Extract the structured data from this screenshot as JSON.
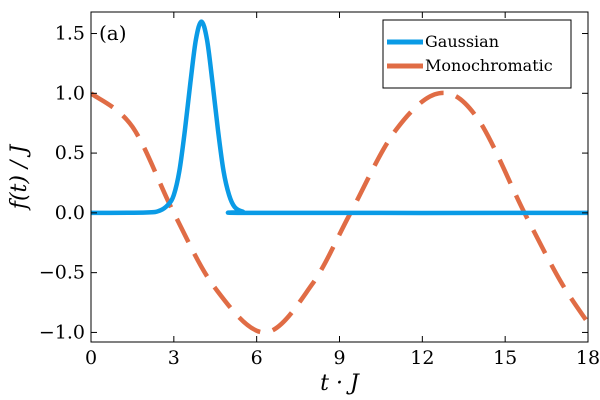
{
  "chart_data": {
    "type": "line",
    "panel_label": "(a)",
    "xlabel": "t · J",
    "ylabel": "f(t) / J",
    "xlim": [
      0,
      18
    ],
    "ylim": [
      -1.08,
      1.68
    ],
    "x_ticks": [
      0,
      3,
      6,
      9,
      12,
      15,
      18
    ],
    "x_tick_labels": [
      "0",
      "3",
      "6",
      "9",
      "12",
      "15",
      "18"
    ],
    "y_ticks": [
      -1.0,
      -0.5,
      0.0,
      0.5,
      1.0,
      1.5
    ],
    "y_tick_labels": [
      "−1.0",
      "−0.5",
      "0.0",
      "0.5",
      "1.0",
      "1.5"
    ],
    "grid": false,
    "legend_position": "top-right",
    "series": [
      {
        "name": "Gaussian",
        "color": "#0a9be6",
        "style": "solid",
        "x": [
          0,
          2.0,
          2.5,
          2.8,
          3.0,
          3.2,
          3.4,
          3.6,
          3.8,
          4.0,
          4.2,
          4.4,
          4.6,
          4.8,
          5.0,
          5.2,
          5.5,
          6.0,
          18
        ],
        "y": [
          0.0,
          0.003,
          0.02,
          0.07,
          0.15,
          0.35,
          0.69,
          1.09,
          1.45,
          1.6,
          1.45,
          1.09,
          0.69,
          0.35,
          0.15,
          0.05,
          0.01,
          0.0,
          0.0
        ]
      },
      {
        "name": "Monochromatic",
        "color": "#e06c45",
        "style": "dashed",
        "x": [
          0,
          1.5,
          3.0,
          4.5,
          6.3,
          8.0,
          9.4,
          11.0,
          12.6,
          14.0,
          15.7,
          17.0,
          18.0
        ],
        "y": [
          1.0,
          0.72,
          0.0,
          -0.63,
          -1.0,
          -0.6,
          0.0,
          0.68,
          1.0,
          0.79,
          0.0,
          -0.57,
          -0.92
        ]
      }
    ]
  }
}
